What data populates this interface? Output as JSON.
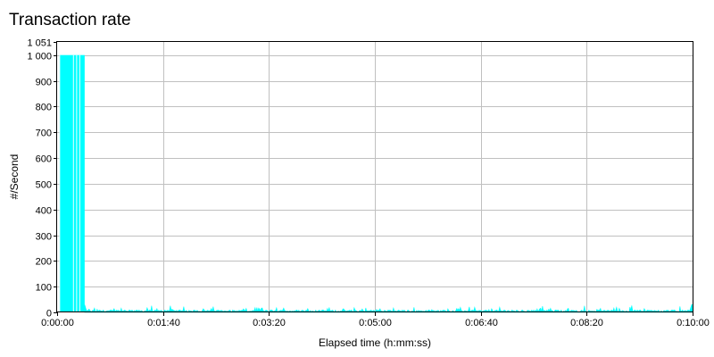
{
  "chart_data": {
    "type": "area",
    "title": "Transaction rate",
    "xlabel": "Elapsed time (h:mm:ss)",
    "ylabel": "#/Second",
    "x_ticks_seconds": [
      0,
      100,
      200,
      300,
      400,
      500,
      600
    ],
    "x_tick_labels": [
      "0:00:00",
      "0:01:40",
      "0:03:20",
      "0:05:00",
      "0:06:40",
      "0:08:20",
      "0:10:00"
    ],
    "xlim_seconds": [
      0,
      600
    ],
    "y_ticks": [
      0,
      100,
      200,
      300,
      400,
      500,
      600,
      700,
      800,
      900,
      1000,
      1051
    ],
    "y_tick_labels": [
      "0",
      "100",
      "200",
      "300",
      "400",
      "500",
      "600",
      "700",
      "800",
      "900",
      "1 000",
      "1 051"
    ],
    "ylim": [
      0,
      1051
    ],
    "grid": true,
    "series": [
      {
        "color": "#00ffff",
        "segments": [
          {
            "x_start": 0,
            "x_end": 26,
            "baseline_value": 1000,
            "gaps_seconds": [
              2,
              15,
              18,
              21
            ]
          },
          {
            "x_start": 26,
            "x_end": 600,
            "baseline_value": 5,
            "spike_max": 30,
            "final_spike": 30
          }
        ]
      }
    ]
  }
}
